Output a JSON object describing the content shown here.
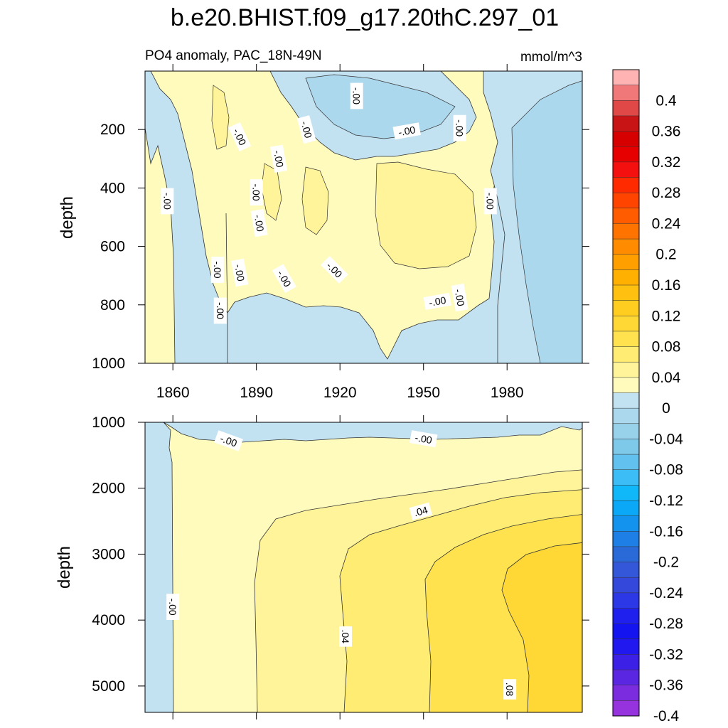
{
  "chart_data": {
    "type": "contour",
    "title": "b.e20.BHIST.f09_g17.20thC.297_01",
    "variable_label": "PO4 anomaly, PAC_18N-49N",
    "units": "mmol/m^3",
    "x_ticks": [
      1860,
      1890,
      1920,
      1950,
      1980
    ],
    "xlim": [
      1850,
      2007
    ],
    "panels": [
      {
        "name": "upper",
        "ylabel": "depth",
        "ylim": [
          0,
          1000
        ],
        "y_ticks": [
          200,
          400,
          600,
          800,
          1000
        ],
        "contour_labels": [
          {
            "text": "-.00",
            "x": 1858,
            "y": 445,
            "rot": 90
          },
          {
            "text": "-.00",
            "x": 1884,
            "y": 225,
            "rot": 65
          },
          {
            "text": "-.00",
            "x": 1890,
            "y": 415,
            "rot": 90
          },
          {
            "text": "-.00",
            "x": 1891,
            "y": 520,
            "rot": 80
          },
          {
            "text": "-.00",
            "x": 1898,
            "y": 300,
            "rot": 80
          },
          {
            "text": "-.00",
            "x": 1876,
            "y": 680,
            "rot": 90
          },
          {
            "text": "-.00",
            "x": 1877,
            "y": 820,
            "rot": 90
          },
          {
            "text": "-.00",
            "x": 1884,
            "y": 690,
            "rot": 80
          },
          {
            "text": "-.00",
            "x": 1900,
            "y": 710,
            "rot": 60
          },
          {
            "text": "-.00",
            "x": 1908,
            "y": 200,
            "rot": 75
          },
          {
            "text": "-.00",
            "x": 1918,
            "y": 680,
            "rot": 45
          },
          {
            "text": "-.00",
            "x": 1926,
            "y": 85,
            "rot": 90
          },
          {
            "text": "-.00",
            "x": 1944,
            "y": 205,
            "rot": -10
          },
          {
            "text": "-.00",
            "x": 1955,
            "y": 788,
            "rot": -10
          },
          {
            "text": "-.00",
            "x": 1963,
            "y": 775,
            "rot": 80
          },
          {
            "text": "-.00",
            "x": 1963,
            "y": 195,
            "rot": 90
          },
          {
            "text": "-.00",
            "x": 1974,
            "y": 445,
            "rot": 90
          }
        ]
      },
      {
        "name": "lower",
        "ylabel": "depth",
        "ylim": [
          1000,
          5400
        ],
        "y_ticks": [
          1000,
          2000,
          3000,
          4000,
          5000
        ],
        "contour_labels": [
          {
            "text": "-.00",
            "x": 1880,
            "y": 1280,
            "rot": 20
          },
          {
            "text": "-.00",
            "x": 1950,
            "y": 1250,
            "rot": 10
          },
          {
            "text": ".04",
            "x": 1949,
            "y": 2350,
            "rot": -15
          },
          {
            "text": "-.00",
            "x": 1860,
            "y": 3800,
            "rot": 90
          },
          {
            "text": ".04",
            "x": 1922,
            "y": 4250,
            "rot": 90
          },
          {
            "text": ".08",
            "x": 1981,
            "y": 5050,
            "rot": 90
          }
        ]
      }
    ],
    "colorbar": {
      "labels": [
        "0.4",
        "0.36",
        "0.32",
        "0.28",
        "0.24",
        "0.2",
        "0.16",
        "0.12",
        "0.08",
        "0.04",
        "0",
        "-0.04",
        "-0.08",
        "-0.12",
        "-0.16",
        "-0.2",
        "-0.24",
        "-0.28",
        "-0.32",
        "-0.36",
        "-0.4"
      ],
      "colors": [
        "#ffb3b3",
        "#f07878",
        "#e04848",
        "#c81414",
        "#d60000",
        "#e60000",
        "#f51010",
        "#ff2a00",
        "#ff4400",
        "#ff5c00",
        "#ff7400",
        "#ff8c00",
        "#ffa000",
        "#ffb000",
        "#ffc010",
        "#ffcc20",
        "#ffd835",
        "#ffe24e",
        "#ffec72",
        "#fff49a",
        "#fffbbd",
        "#c2e2f2",
        "#acd8ee",
        "#98d2ea",
        "#7ec8ea",
        "#62c1ee",
        "#3cbdf6",
        "#10b8fa",
        "#0aa8f6",
        "#1493ee",
        "#1e80e6",
        "#2a6ad8",
        "#3456d8",
        "#3448dc",
        "#2c38e6",
        "#2020ee",
        "#1414f0",
        "#2018ee",
        "#3c20e6",
        "#5a26e2",
        "#7a2cde",
        "#9632de"
      ]
    }
  }
}
